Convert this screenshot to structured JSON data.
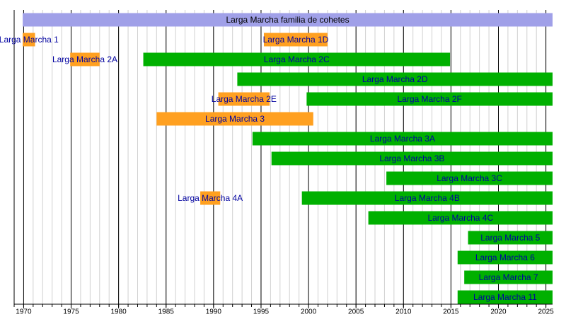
{
  "chart_data": {
    "type": "timeline",
    "xlim": [
      1969,
      2025.7
    ],
    "xticks": [
      1970,
      1975,
      1980,
      1985,
      1990,
      1995,
      2000,
      2005,
      2010,
      2015,
      2020,
      2025
    ],
    "xminorticks": [
      1969,
      1970,
      1971,
      1972,
      1973,
      1974,
      1975,
      1976,
      1977,
      1978,
      1979,
      1980,
      1981,
      1982,
      1983,
      1984,
      1985,
      1986,
      1987,
      1988,
      1989,
      1990,
      1991,
      1992,
      1993,
      1994,
      1995,
      1996,
      1997,
      1998,
      1999,
      2000,
      2001,
      2002,
      2003,
      2004,
      2005,
      2006,
      2007,
      2008,
      2009,
      2010,
      2011,
      2012,
      2013,
      2014,
      2015,
      2016,
      2017,
      2018,
      2019,
      2020,
      2021,
      2022,
      2023,
      2024,
      2025
    ],
    "rows": [
      {
        "bars": [
          {
            "name": "Larga Marcha familia de cohetes",
            "start": 1969.9,
            "end": 2025.7,
            "color": "#a0a0e8"
          }
        ]
      },
      {
        "bars": [
          {
            "name": "Larga Marcha 1",
            "start": 1969.9,
            "end": 1971.2,
            "color": "#ffa020"
          },
          {
            "name": "Larga Marcha 1D",
            "start": 1995.3,
            "end": 2002,
            "color": "#ffa020"
          }
        ]
      },
      {
        "bars": [
          {
            "name": "Larga Marcha 2A",
            "start": 1974.9,
            "end": 1978,
            "color": "#ffa020"
          },
          {
            "name": "Larga Marcha 2C",
            "start": 1982.6,
            "end": 2014.9,
            "color": "#00b000"
          }
        ]
      },
      {
        "bars": [
          {
            "name": "Larga Marcha 2D",
            "start": 1992.5,
            "end": 2025.7,
            "color": "#00b000"
          }
        ]
      },
      {
        "bars": [
          {
            "name": "Larga Marcha 2E",
            "start": 1990.5,
            "end": 1995.9,
            "color": "#ffa020"
          },
          {
            "name": "Larga Marcha 2F",
            "start": 1999.8,
            "end": 2025.7,
            "color": "#00b000"
          }
        ]
      },
      {
        "bars": [
          {
            "name": "Larga Marcha 3",
            "start": 1984,
            "end": 2000.5,
            "color": "#ffa020"
          }
        ]
      },
      {
        "bars": [
          {
            "name": "Larga Marcha 3A",
            "start": 1994.1,
            "end": 2025.7,
            "color": "#00b000"
          }
        ]
      },
      {
        "bars": [
          {
            "name": "Larga Marcha 3B",
            "start": 1996.1,
            "end": 2025.7,
            "color": "#00b000"
          }
        ]
      },
      {
        "bars": [
          {
            "name": "Larga Marcha 3C",
            "start": 2008.2,
            "end": 2025.7,
            "color": "#00b000"
          }
        ]
      },
      {
        "bars": [
          {
            "name": "Larga Marcha 4A",
            "start": 1988.6,
            "end": 1990.7,
            "color": "#ffa020"
          },
          {
            "name": "Larga Marcha 4B",
            "start": 1999.3,
            "end": 2025.7,
            "color": "#00b000"
          }
        ]
      },
      {
        "bars": [
          {
            "name": "Larga Marcha 4C",
            "start": 2006.3,
            "end": 2025.7,
            "color": "#00b000"
          }
        ]
      },
      {
        "bars": [
          {
            "name": "Larga Marcha 5",
            "start": 2016.8,
            "end": 2025.7,
            "color": "#00b000"
          }
        ]
      },
      {
        "bars": [
          {
            "name": "Larga Marcha 6",
            "start": 2015.7,
            "end": 2025.7,
            "color": "#00b000"
          }
        ]
      },
      {
        "bars": [
          {
            "name": "Larga Marcha 7",
            "start": 2016.4,
            "end": 2025.7,
            "color": "#00b000"
          }
        ]
      },
      {
        "bars": [
          {
            "name": "Larga Marcha 11",
            "start": 2015.7,
            "end": 2025.7,
            "color": "#00b000"
          }
        ]
      }
    ]
  }
}
